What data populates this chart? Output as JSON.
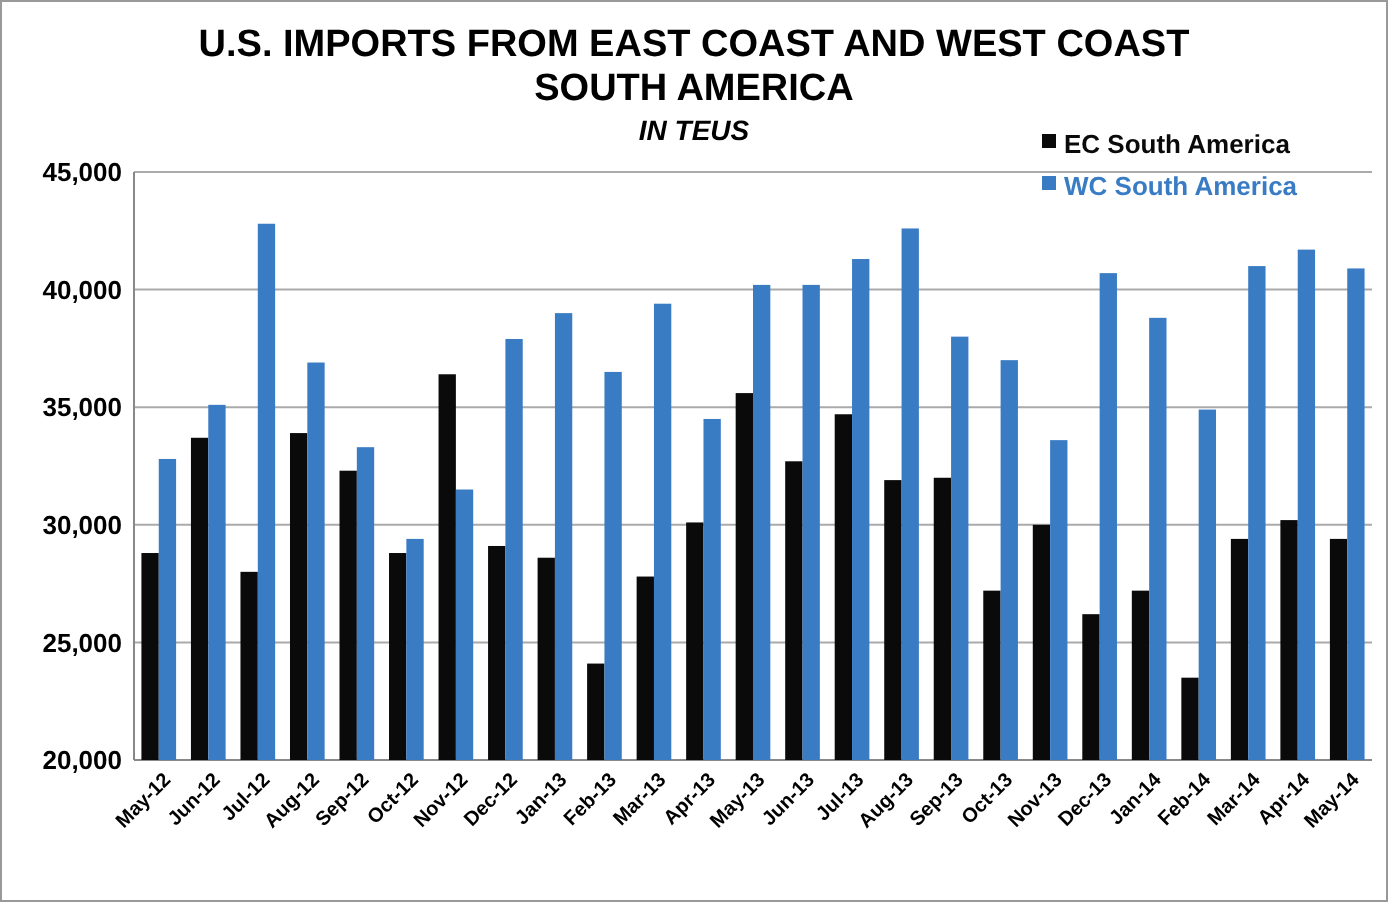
{
  "chart_data": {
    "type": "bar",
    "title": "U.S. IMPORTS FROM EAST COAST AND WEST COAST SOUTH AMERICA",
    "subtitle": "IN TEUS",
    "categories": [
      "May-12",
      "Jun-12",
      "Jul-12",
      "Aug-12",
      "Sep-12",
      "Oct-12",
      "Nov-12",
      "Dec-12",
      "Jan-13",
      "Feb-13",
      "Mar-13",
      "Apr-13",
      "May-13",
      "Jun-13",
      "Jul-13",
      "Aug-13",
      "Sep-13",
      "Oct-13",
      "Nov-13",
      "Dec-13",
      "Jan-14",
      "Feb-14",
      "Mar-14",
      "Apr-14",
      "May-14"
    ],
    "series": [
      {
        "name": "EC South America",
        "color": "#0a0a0a",
        "values": [
          28800,
          33700,
          28000,
          33900,
          32300,
          28800,
          36400,
          29100,
          28600,
          24100,
          27800,
          30100,
          35600,
          32700,
          34700,
          31900,
          32000,
          27200,
          30000,
          26200,
          27200,
          23500,
          29400,
          30200,
          29400
        ]
      },
      {
        "name": "WC South America",
        "color": "#3a7cc4",
        "values": [
          32800,
          35100,
          42800,
          36900,
          33300,
          29400,
          31500,
          37900,
          39000,
          36500,
          39400,
          34500,
          40200,
          40200,
          41300,
          42600,
          38000,
          37000,
          33600,
          40700,
          38800,
          34900,
          41000,
          41700,
          40900
        ]
      }
    ],
    "ylim": [
      20000,
      45000
    ],
    "yticks": [
      {
        "value": 20000,
        "label": "20,000"
      },
      {
        "value": 25000,
        "label": "25,000"
      },
      {
        "value": 30000,
        "label": "30,000"
      },
      {
        "value": 35000,
        "label": "35,000"
      },
      {
        "value": 40000,
        "label": "40,000"
      },
      {
        "value": 45000,
        "label": "45,000"
      }
    ],
    "grid": "y",
    "legend": "top right"
  }
}
